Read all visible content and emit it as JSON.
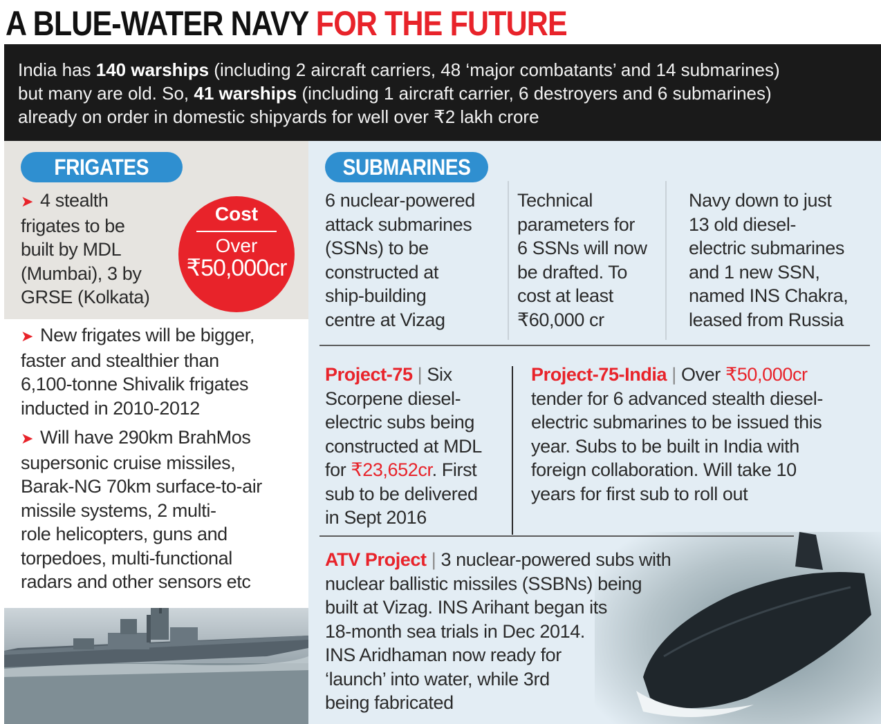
{
  "headline": {
    "part1": "A BLUE-WATER NAVY",
    "part2": "FOR THE FUTURE"
  },
  "intro": {
    "line1_pre": "India has ",
    "line1_bold": "140 warships",
    "line1_post": " (including 2 aircraft carriers, 48 ‘major combatants’ and 14 submarines)",
    "line2_pre": "but many are old. So, ",
    "line2_bold": "41 warships",
    "line2_post": " (including 1 aircraft carrier, 6 destroyers and 6 submarines)",
    "line3": "already on order in domestic shipyards for well over ₹2 lakh crore"
  },
  "frigates": {
    "label": "FRIGATES",
    "point1": [
      "4 stealth",
      "frigates to be",
      "built by MDL",
      "(Mumbai), 3 by",
      "GRSE (Kolkata)"
    ],
    "cost": {
      "title": "Cost",
      "over": "Over",
      "value": "₹50,000cr"
    },
    "point2": [
      "New frigates will be bigger,",
      "faster and stealthier than",
      "6,100-tonne Shivalik frigates",
      "inducted in 2010-2012"
    ],
    "point3": [
      "Will have 290km BrahMos",
      "supersonic cruise missiles,",
      "Barak-NG 70km surface-to-air",
      "missile systems, 2 multi-",
      "role helicopters, guns and",
      "torpedoes, multi-functional",
      "radars and other sensors etc"
    ]
  },
  "submarines": {
    "label": "SUBMARINES",
    "col1": [
      "6 nuclear-powered",
      "attack submarines",
      "(SSNs) to be",
      "constructed at",
      "ship-building",
      "centre at Vizag"
    ],
    "col2": [
      "Technical",
      "parameters for",
      "6 SSNs will now",
      "be drafted. To",
      "cost at least",
      "₹60,000 cr"
    ],
    "col3": [
      "Navy down to just",
      "13 old diesel-",
      "electric submarines",
      "and 1 new SSN,",
      "named INS Chakra,",
      "leased from Russia"
    ],
    "p75": {
      "title": "Project-75",
      "sep": " | ",
      "l1": "Six",
      "l2": "Scorpene diesel-",
      "l3": "electric subs being",
      "l4": "constructed at MDL",
      "l5_pre": "for ",
      "l5_red": "₹23,652cr",
      "l5_post": ". First",
      "l6": "sub to be delivered",
      "l7": "in Sept 2016"
    },
    "p75i": {
      "title": "Project-75-India",
      "sep": " | ",
      "l1_pre": "Over ",
      "l1_red": "₹50,000cr",
      "lines": [
        "tender for 6 advanced stealth diesel-",
        "electric submarines to be issued this",
        "year. Subs to be built in India with",
        "foreign collaboration. Will take 10",
        "years for first sub to roll out"
      ]
    },
    "atv": {
      "title": "ATV Project",
      "sep": " | ",
      "l1": "3 nuclear-powered subs with",
      "lines": [
        "nuclear ballistic missiles (SSBNs) being",
        "built at Vizag. INS Arihant began its",
        "18-month sea trials in Dec 2014.",
        "INS Aridhaman now ready for",
        "‘launch’ into water, while 3rd",
        "being fabricated"
      ]
    }
  }
}
